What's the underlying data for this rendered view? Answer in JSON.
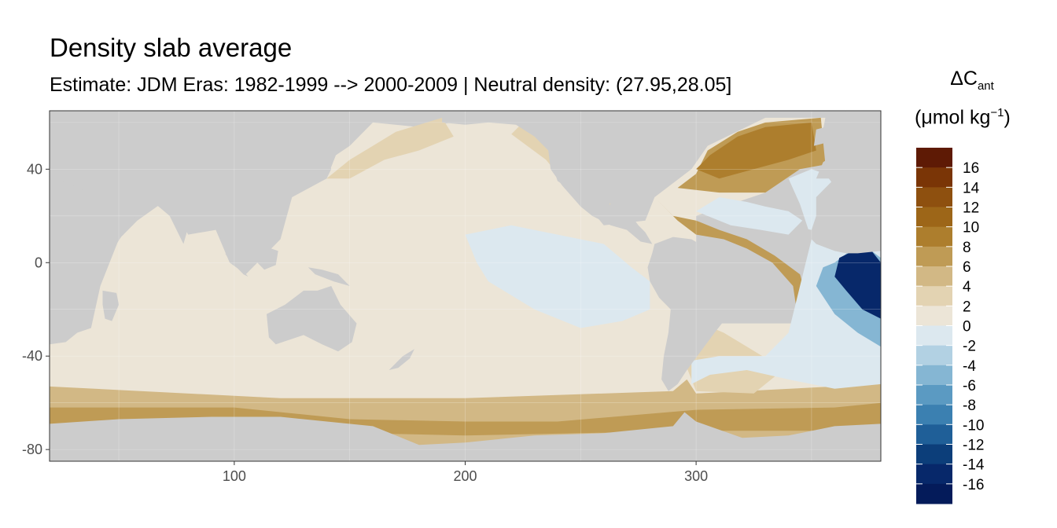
{
  "title": "Density slab average",
  "subtitle": "Estimate: JDM Eras: 1982-1999 --> 2000-2009 | Neutral density: (27.95,28.05]",
  "chart_data": {
    "type": "heatmap",
    "title": "Density slab average",
    "subtitle": "Estimate: JDM Eras: 1982-1999 --> 2000-2009 | Neutral density: (27.95,28.05]",
    "xlim": [
      20,
      380
    ],
    "ylim": [
      -85,
      65
    ],
    "x_ticks": [
      100,
      200,
      300
    ],
    "y_ticks": [
      40,
      0,
      -40,
      -80
    ],
    "grid": true,
    "legend": {
      "placement": "right",
      "title_main": "ΔC",
      "title_sub": "ant",
      "unit_main": "(μmol kg",
      "unit_sup": "−1",
      "unit_end": ")",
      "labels": [
        "16",
        "14",
        "12",
        "10",
        "8",
        "6",
        "4",
        "2",
        "0",
        "-2",
        "-4",
        "-6",
        "-8",
        "-10",
        "-12",
        "-14",
        "-16"
      ],
      "colors": [
        "#5e1a05",
        "#7a3506",
        "#8e500f",
        "#9d6618",
        "#ad7e2d",
        "#bf9b55",
        "#d2b885",
        "#e3d3b2",
        "#ece5d7",
        "#dce8ef",
        "#b2d1e3",
        "#85b6d3",
        "#5b9ac2",
        "#3b80b1",
        "#1f5f98",
        "#0c3e7a",
        "#07286a",
        "#041b5a"
      ]
    },
    "land_color": "#cccccc",
    "regions": [
      {
        "name": "ocean-background",
        "value": 1
      },
      {
        "name": "southern-ocean-band",
        "value": 4
      },
      {
        "name": "southern-ocean-deep-band",
        "value": 6
      },
      {
        "name": "north-pacific-margin",
        "value": 3
      },
      {
        "name": "north-atlantic",
        "value": 6
      },
      {
        "name": "north-atlantic-deep",
        "value": 9
      },
      {
        "name": "tropical-pacific",
        "value": -1
      },
      {
        "name": "south-atlantic-west",
        "value": 3
      },
      {
        "name": "south-atlantic-east",
        "value": -1
      },
      {
        "name": "south-atlantic-gradient",
        "value": -6
      },
      {
        "name": "south-atlantic-core",
        "value": -16
      }
    ]
  }
}
